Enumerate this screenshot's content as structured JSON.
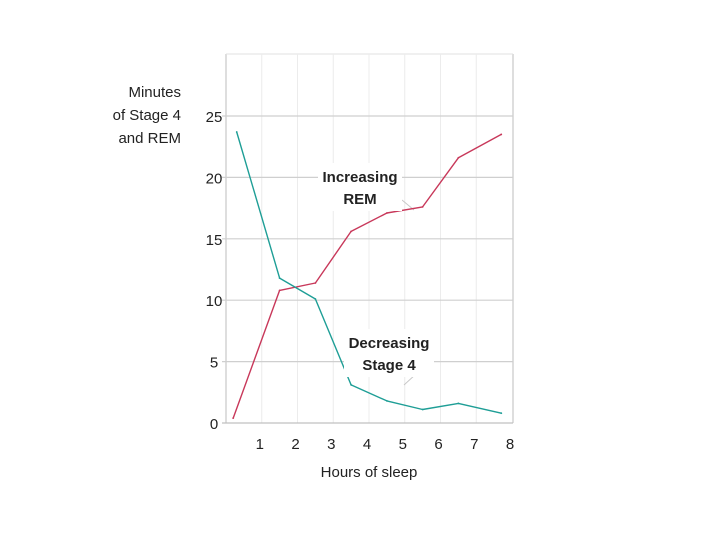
{
  "chart_data": {
    "type": "line",
    "title": "",
    "ylabel_lines": [
      "Minutes",
      "of Stage 4",
      "and REM"
    ],
    "xlabel": "Hours of sleep",
    "xlim": [
      0,
      8
    ],
    "ylim": [
      0,
      25
    ],
    "x_ticks": [
      1,
      2,
      3,
      4,
      5,
      6,
      7,
      8
    ],
    "y_ticks": [
      0,
      5,
      10,
      15,
      20,
      25
    ],
    "grid": "horizontal and vertical",
    "legend": "none",
    "series": [
      {
        "key": "rem",
        "color": "#c8385a",
        "x": [
          0.2,
          1.5,
          2.5,
          3.5,
          4.5,
          5.5,
          6.5,
          7.7
        ],
        "values": [
          0.4,
          10.8,
          11.4,
          15.6,
          17.1,
          17.6,
          21.6,
          23.5
        ]
      },
      {
        "key": "stage4",
        "color": "#1e9e96",
        "x": [
          0.3,
          1.5,
          2.5,
          3.5,
          4.5,
          5.5,
          6.5,
          7.7
        ],
        "values": [
          23.7,
          11.8,
          10.1,
          3.1,
          1.8,
          1.1,
          1.6,
          0.8
        ]
      }
    ],
    "annotations": [
      {
        "key": "rem",
        "lines": [
          "Increasing",
          "REM"
        ]
      },
      {
        "key": "stage4",
        "lines": [
          "Decreasing",
          "Stage 4"
        ]
      }
    ]
  }
}
